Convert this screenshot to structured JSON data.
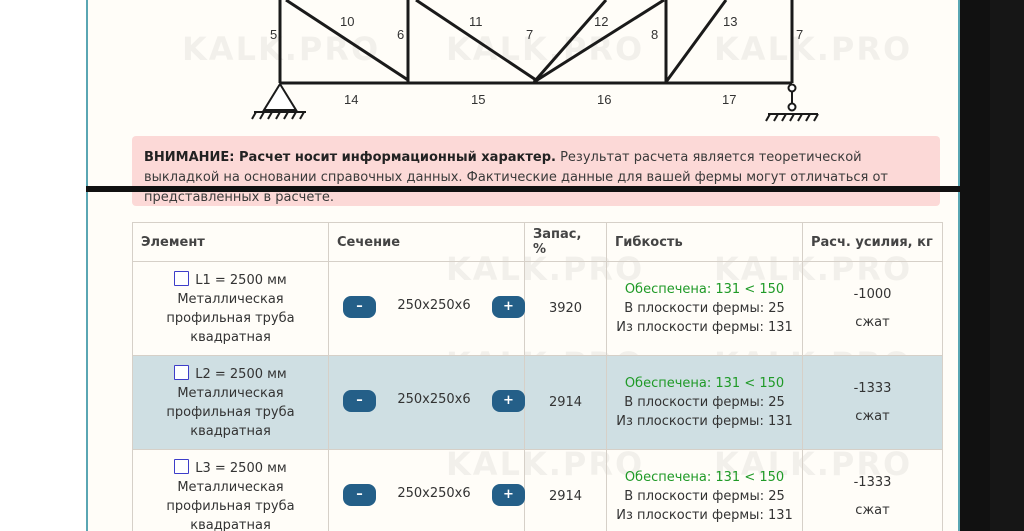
{
  "truss": {
    "members": [
      "5",
      "10",
      "6",
      "11",
      "7",
      "12",
      "8",
      "13",
      "7",
      "14",
      "15",
      "16",
      "17"
    ]
  },
  "watermark": "KALK.PRO",
  "alert": {
    "bold": "ВНИМАНИЕ: Расчет носит информационный характер.",
    "text": "Результат расчета является теоретической выкладкой на основании справочных данных. Фактические данные для вашей фермы могут отличаться от представленных в расчете."
  },
  "table": {
    "headers": {
      "element": "Элемент",
      "section": "Сечение",
      "reserve": "Запас, %",
      "flex": "Гибкость",
      "force": "Расч. усилия, кг"
    },
    "rows": [
      {
        "length": "L1 = 2500 мм",
        "mat1": "Металлическая",
        "mat2": "профильная труба",
        "mat3": "квадратная",
        "minus": "–",
        "section": "250x250x6",
        "plus": "+",
        "reserve": "3920",
        "flex_ok": "Обеспечена: 131 < 150",
        "flex_in": "В плоскости фермы: 25",
        "flex_out": "Из плоскости фермы: 131",
        "force": "-1000",
        "force_type": "сжат"
      },
      {
        "length": "L2 = 2500 мм",
        "mat1": "Металлическая",
        "mat2": "профильная труба",
        "mat3": "квадратная",
        "minus": "–",
        "section": "250x250x6",
        "plus": "+",
        "reserve": "2914",
        "flex_ok": "Обеспечена: 131 < 150",
        "flex_in": "В плоскости фермы: 25",
        "flex_out": "Из плоскости фермы: 131",
        "force": "-1333",
        "force_type": "сжат"
      },
      {
        "length": "L3 = 2500 мм",
        "mat1": "Металлическая",
        "mat2": "профильная труба",
        "mat3": "квадратная",
        "minus": "–",
        "section": "250x250x6",
        "plus": "+",
        "reserve": "2914",
        "flex_ok": "Обеспечена: 131 < 150",
        "flex_in": "В плоскости фермы: 25",
        "flex_out": "Из плоскости фермы: 131",
        "force": "-1333",
        "force_type": "сжат"
      }
    ]
  }
}
